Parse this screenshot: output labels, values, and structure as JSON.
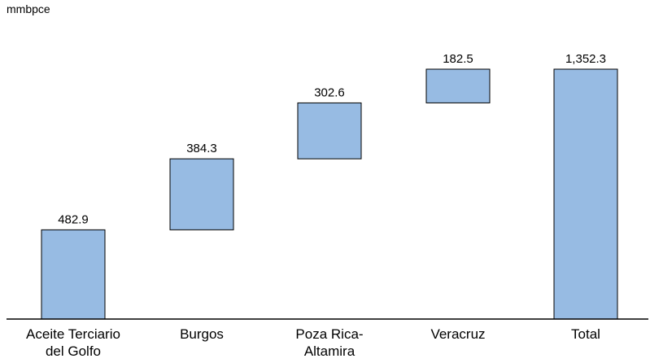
{
  "chart_data": {
    "type": "bar",
    "subtype": "waterfall",
    "unit_label": "mmbpce",
    "categories": [
      [
        "Aceite Terciario",
        "del Golfo"
      ],
      [
        "Burgos"
      ],
      [
        "Poza Rica-",
        "Altamira"
      ],
      [
        "Veracruz"
      ],
      [
        "Total"
      ]
    ],
    "values": [
      482.9,
      384.3,
      302.6,
      182.5,
      1352.3
    ],
    "value_labels": [
      "482.9",
      "384.3",
      "302.6",
      "182.5",
      "1,352.3"
    ],
    "is_total": [
      false,
      false,
      false,
      false,
      true
    ],
    "ylim": [
      0,
      1352.3
    ],
    "grid": false,
    "legend": "none",
    "bar_color": "#97bbe3"
  }
}
